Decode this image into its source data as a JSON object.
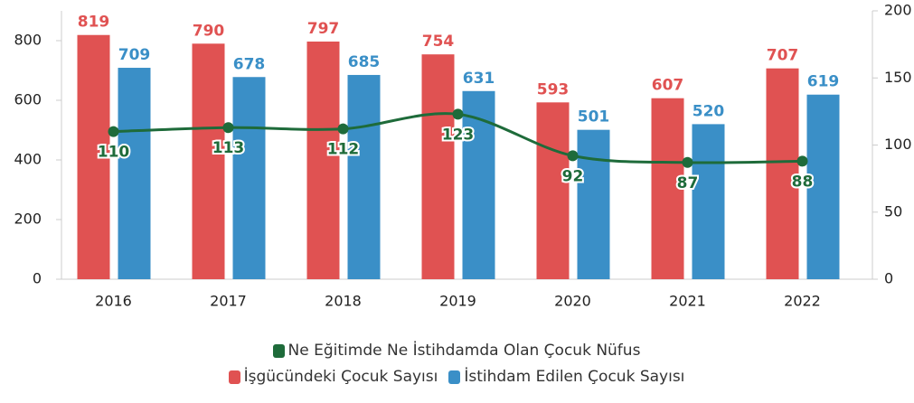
{
  "chart_data": {
    "type": "bar",
    "categories": [
      "2016",
      "2017",
      "2018",
      "2019",
      "2020",
      "2021",
      "2022"
    ],
    "series": [
      {
        "name": "Ne Eğitimde Ne İstihdamda Olan Çocuk Nüfus",
        "color": "#1e6b3a",
        "type": "line",
        "axis": "y2",
        "values": [
          110,
          113,
          112,
          123,
          92,
          87,
          88
        ]
      },
      {
        "name": "İşgücündeki Çocuk Sayısı",
        "color": "#e05252",
        "values": [
          819,
          790,
          797,
          754,
          593,
          607,
          707
        ]
      },
      {
        "name": "İstihdam Edilen Çocuk Sayısı",
        "color": "#3a8fc7",
        "values": [
          709,
          678,
          685,
          631,
          501,
          520,
          619
        ]
      }
    ],
    "ylim": [
      0,
      900
    ],
    "yticks": [
      0,
      200,
      400,
      600,
      800
    ],
    "y2lim": [
      0,
      200
    ],
    "y2ticks": [
      0,
      50,
      100,
      150,
      200
    ],
    "legend": "bottom"
  }
}
